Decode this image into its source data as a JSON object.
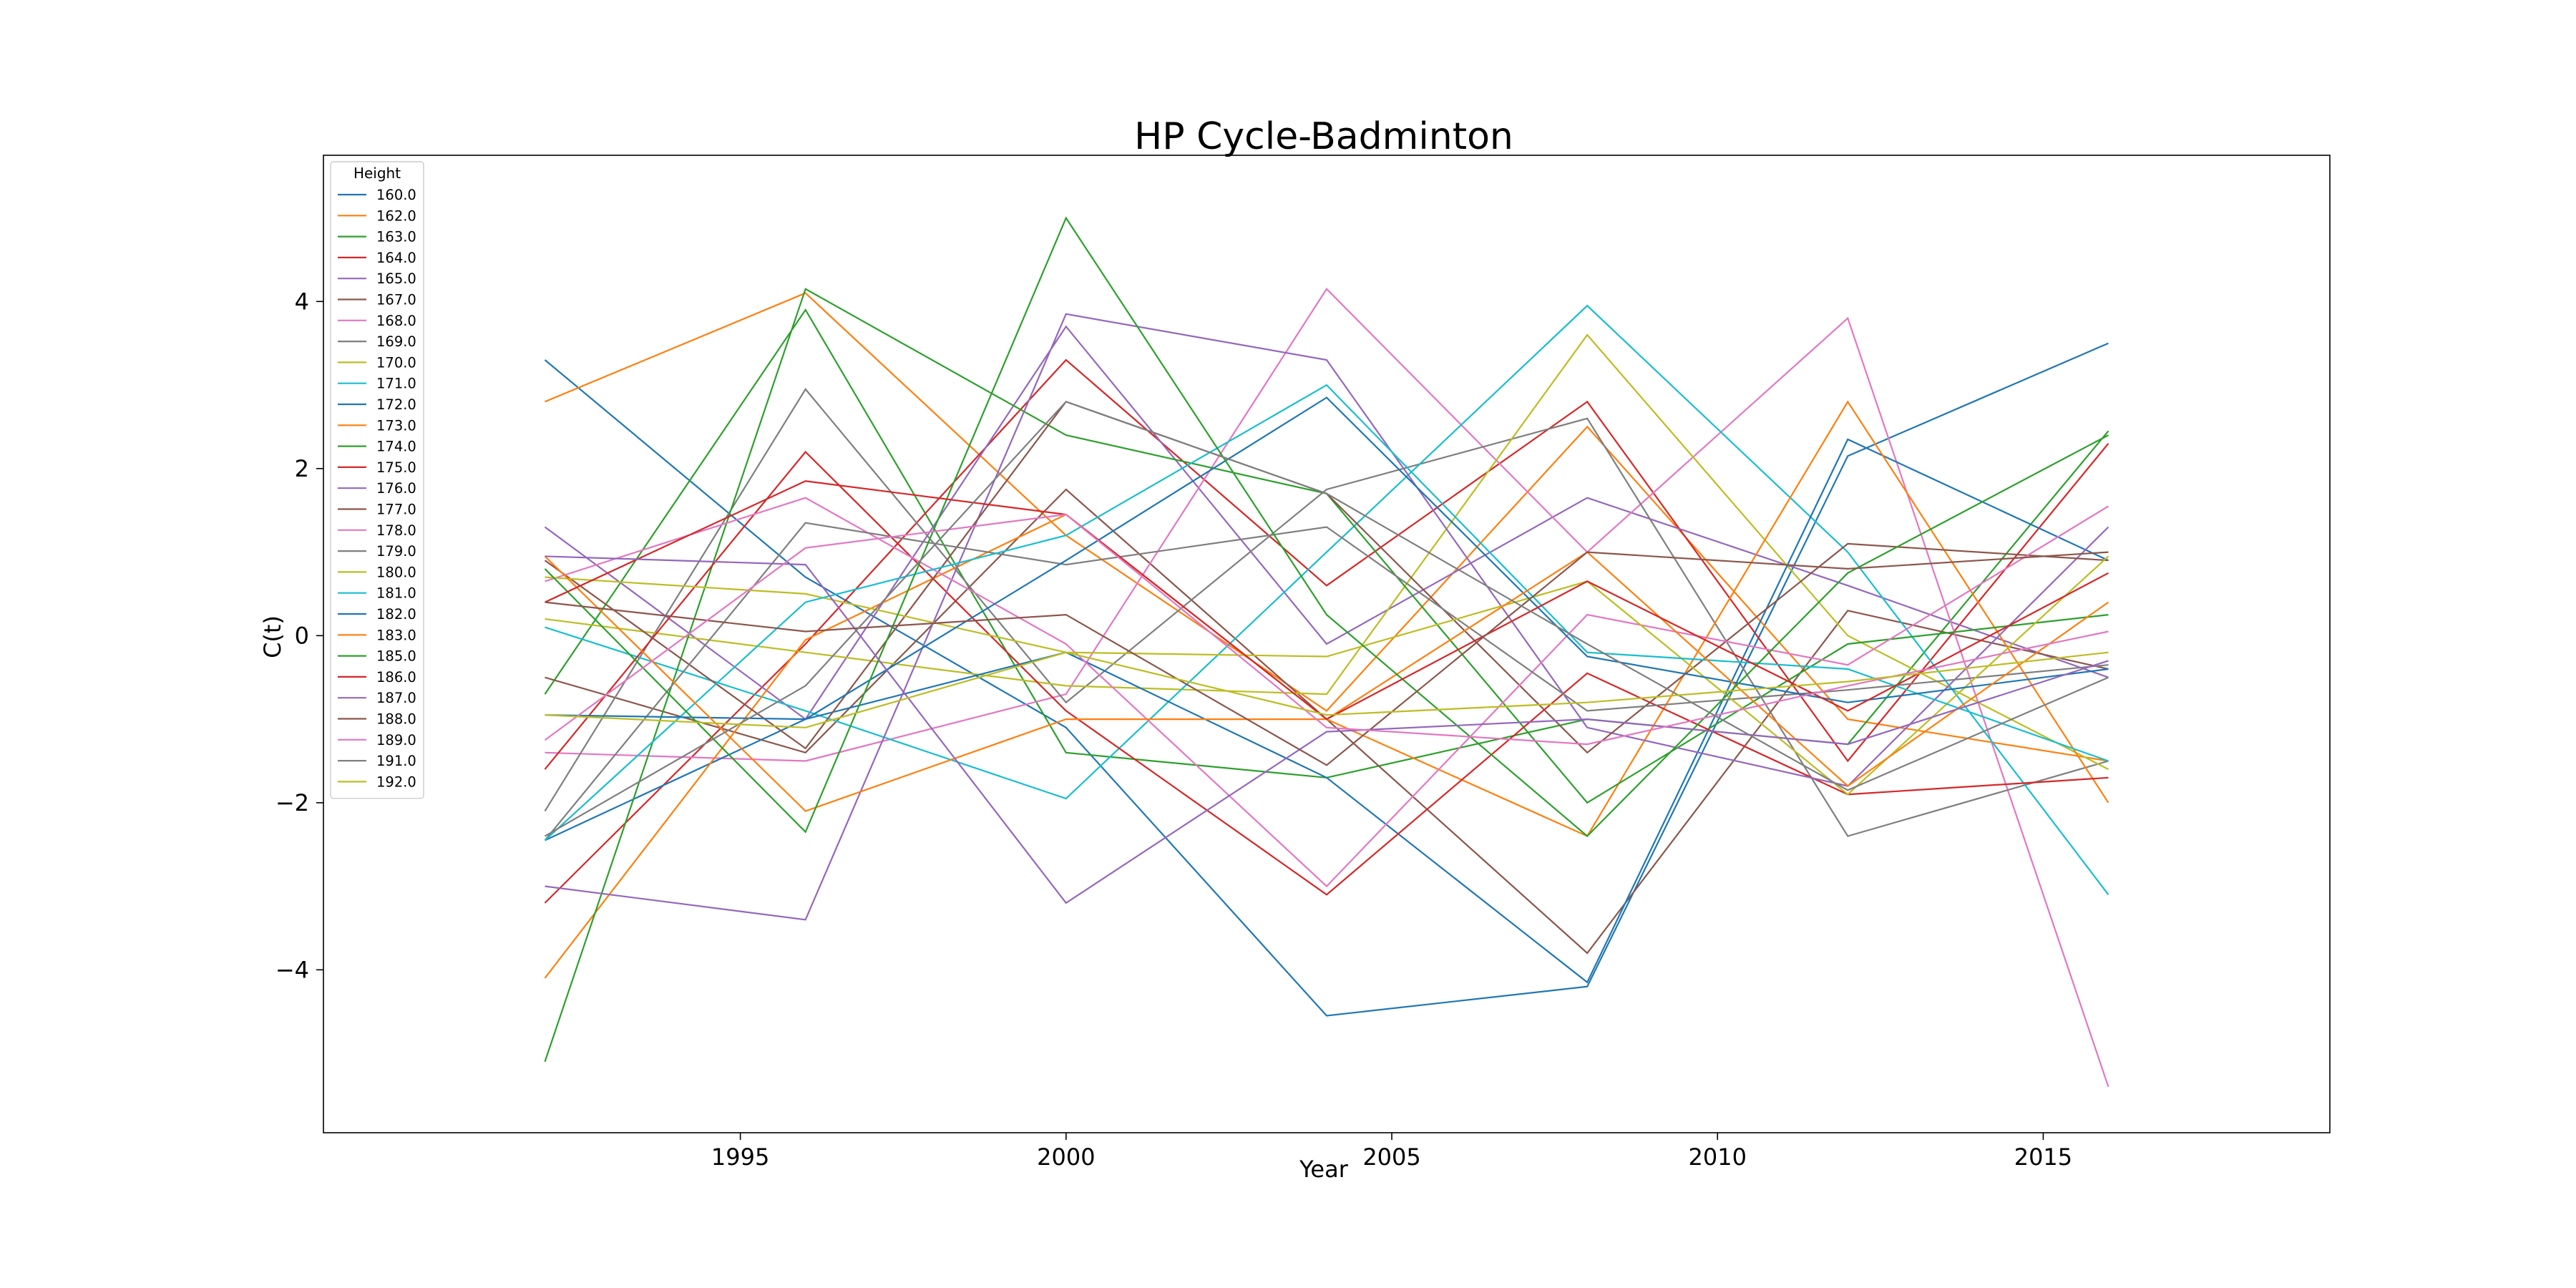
{
  "chart_data": {
    "type": "line",
    "title": "HP Cycle-Badminton",
    "xlabel": "Year",
    "ylabel": "C(t)",
    "x": [
      1992,
      1996,
      2000,
      2004,
      2008,
      2012,
      2016
    ],
    "xlim": [
      1988.6,
      2019.4
    ],
    "ylim": [
      -5.95,
      5.75
    ],
    "xticks": [
      1995,
      2000,
      2005,
      2010,
      2015
    ],
    "yticks": [
      -4,
      -2,
      0,
      2,
      4
    ],
    "grid": false,
    "legend": {
      "title": "Height",
      "placement": "top-left"
    },
    "colors": [
      "#1f77b4",
      "#ff7f0e",
      "#2ca02c",
      "#d62728",
      "#9467bd",
      "#8c564b",
      "#e377c2",
      "#7f7f7f",
      "#bcbd22",
      "#17becf"
    ],
    "series": [
      {
        "name": "160.0",
        "values": [
          3.3,
          0.7,
          -1.1,
          -4.55,
          -4.2,
          2.15,
          3.5
        ]
      },
      {
        "name": "162.0",
        "values": [
          2.8,
          4.1,
          1.2,
          -0.9,
          2.5,
          -1.0,
          -1.5
        ]
      },
      {
        "name": "163.0",
        "values": [
          -0.7,
          3.9,
          -1.4,
          -1.7,
          -1.0,
          -1.3,
          2.45
        ]
      },
      {
        "name": "164.0",
        "values": [
          -3.2,
          -0.1,
          3.3,
          0.6,
          2.8,
          -1.5,
          2.3
        ]
      },
      {
        "name": "165.0",
        "values": [
          1.3,
          -1.0,
          3.7,
          -0.1,
          1.65,
          0.6,
          -0.5
        ]
      },
      {
        "name": "167.0",
        "values": [
          -0.5,
          -1.4,
          1.75,
          -1.0,
          -3.8,
          0.3,
          -0.4
        ]
      },
      {
        "name": "168.0",
        "values": [
          -1.4,
          -1.5,
          -0.7,
          4.15,
          1.0,
          3.8,
          -5.4
        ]
      },
      {
        "name": "169.0",
        "values": [
          -2.1,
          2.95,
          -0.8,
          1.75,
          2.6,
          -2.4,
          -1.5
        ]
      },
      {
        "name": "170.0",
        "values": [
          0.2,
          -0.2,
          -0.6,
          -0.7,
          3.6,
          0.0,
          -1.6
        ]
      },
      {
        "name": "171.0",
        "values": [
          0.1,
          -0.9,
          -1.95,
          1.0,
          3.95,
          1.0,
          -3.1
        ]
      },
      {
        "name": "172.0",
        "values": [
          -2.45,
          -1.0,
          -0.2,
          -1.7,
          -4.15,
          2.35,
          0.9
        ]
      },
      {
        "name": "173.0",
        "values": [
          -4.1,
          -0.05,
          1.45,
          -1.0,
          -2.4,
          2.8,
          -2.0
        ]
      },
      {
        "name": "174.0",
        "values": [
          -5.1,
          4.15,
          2.4,
          1.7,
          -2.0,
          -0.1,
          0.25
        ]
      },
      {
        "name": "175.0",
        "values": [
          -1.6,
          2.2,
          -0.9,
          -3.1,
          -0.45,
          -1.9,
          -1.7
        ]
      },
      {
        "name": "176.0",
        "values": [
          -3.0,
          -3.4,
          3.85,
          3.3,
          -1.1,
          -1.8,
          1.3
        ]
      },
      {
        "name": "177.0",
        "values": [
          0.9,
          -1.35,
          2.8,
          1.7,
          -1.4,
          1.1,
          0.9
        ]
      },
      {
        "name": "178.0",
        "values": [
          0.65,
          1.65,
          -0.1,
          -3.0,
          0.25,
          -0.35,
          1.55
        ]
      },
      {
        "name": "179.0",
        "values": [
          -2.45,
          1.35,
          0.85,
          1.3,
          -0.9,
          -0.65,
          -0.35
        ]
      },
      {
        "name": "180.0",
        "values": [
          0.7,
          0.5,
          -0.2,
          -0.25,
          0.65,
          -1.9,
          0.95
        ]
      },
      {
        "name": "181.0",
        "values": [
          -2.45,
          0.4,
          1.2,
          3.0,
          -0.2,
          -0.4,
          -1.5
        ]
      },
      {
        "name": "182.0",
        "values": [
          -0.95,
          -1.0,
          0.9,
          2.85,
          -0.25,
          -0.8,
          -0.4
        ]
      },
      {
        "name": "183.0",
        "values": [
          0.95,
          -2.1,
          -1.0,
          -1.0,
          1.0,
          -1.8,
          0.4
        ]
      },
      {
        "name": "185.0",
        "values": [
          0.8,
          -2.35,
          5.0,
          0.25,
          -2.4,
          0.75,
          2.4
        ]
      },
      {
        "name": "186.0",
        "values": [
          0.4,
          1.85,
          1.45,
          -1.0,
          0.65,
          -0.9,
          0.75
        ]
      },
      {
        "name": "187.0",
        "values": [
          0.95,
          0.85,
          -3.2,
          -1.15,
          -1.0,
          -1.3,
          -0.3
        ]
      },
      {
        "name": "188.0",
        "values": [
          0.4,
          0.05,
          0.25,
          -1.55,
          1.0,
          0.8,
          1.0
        ]
      },
      {
        "name": "189.0",
        "values": [
          -1.25,
          1.05,
          1.45,
          -1.1,
          -1.3,
          -0.6,
          0.05
        ]
      },
      {
        "name": "191.0",
        "values": [
          -2.4,
          -0.6,
          2.8,
          1.7,
          -0.1,
          -1.85,
          -0.5
        ]
      },
      {
        "name": "192.0",
        "values": [
          -0.95,
          -1.1,
          -0.2,
          -0.95,
          -0.8,
          -0.55,
          -0.2
        ]
      }
    ]
  }
}
